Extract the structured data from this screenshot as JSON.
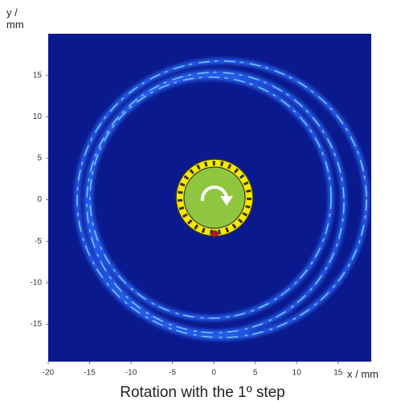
{
  "chart_data": {
    "type": "image",
    "title": "Rotation with the 1º step",
    "xlabel": "x / mm",
    "ylabel": "y / mm",
    "xlim": [
      -20,
      19
    ],
    "ylim": [
      -19.5,
      20
    ],
    "xticks": [
      -20,
      -15,
      -10,
      -5,
      0,
      5,
      10,
      15
    ],
    "yticks": [
      -15,
      -10,
      -5,
      0,
      5,
      10,
      15
    ],
    "color": "#0a1a8e"
  }
}
